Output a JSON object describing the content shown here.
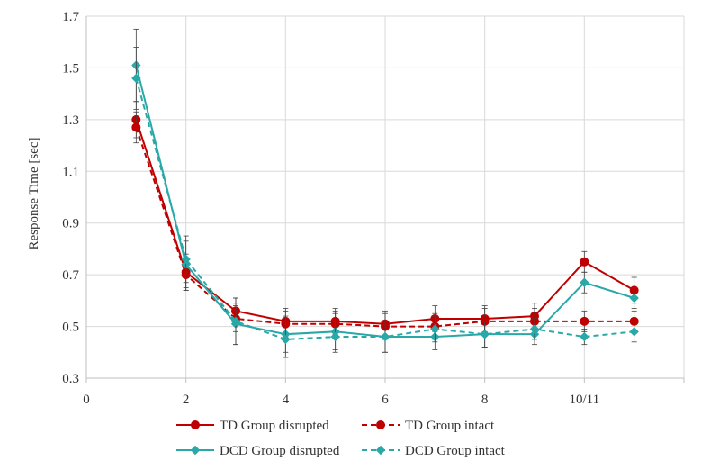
{
  "chart_data": {
    "type": "line",
    "title": "",
    "xlabel": "",
    "ylabel": "Response Time [sec]",
    "xlim": [
      0,
      12
    ],
    "ylim": [
      0.3,
      1.7
    ],
    "x_ticks": [
      0,
      2,
      4,
      6,
      8,
      10,
      12
    ],
    "x_tick_labels": [
      "0",
      "2",
      "4",
      "6",
      "8",
      "10/11",
      ""
    ],
    "y_ticks": [
      0.3,
      0.5,
      0.7,
      0.9,
      1.1,
      1.3,
      1.5,
      1.7
    ],
    "y_tick_labels": [
      "0.3",
      "0.5",
      "0.7",
      "0.9",
      "1.1",
      "1.3",
      "1.5",
      "1.7"
    ],
    "grid": true,
    "legend_position": "bottom",
    "x": [
      1,
      2,
      3,
      4,
      5,
      6,
      7,
      8,
      9,
      10,
      11
    ],
    "series": [
      {
        "name": "TD Group disrupted",
        "color": "#c00000",
        "dashed": false,
        "marker": "circle",
        "values": [
          1.3,
          0.71,
          0.56,
          0.52,
          0.52,
          0.51,
          0.53,
          0.53,
          0.54,
          0.75,
          0.64
        ],
        "errors": [
          0.07,
          0.07,
          0.05,
          0.05,
          0.05,
          0.05,
          0.05,
          0.05,
          0.05,
          0.04,
          0.05
        ]
      },
      {
        "name": "TD Group intact",
        "color": "#c00000",
        "dashed": true,
        "marker": "circle",
        "values": [
          1.27,
          0.7,
          0.53,
          0.51,
          0.51,
          0.5,
          0.5,
          0.52,
          0.52,
          0.52,
          0.52
        ],
        "errors": [
          0.06,
          0.06,
          0.05,
          0.05,
          0.05,
          0.05,
          0.05,
          0.05,
          0.05,
          0.04,
          0.04
        ]
      },
      {
        "name": "DCD Group disrupted",
        "color": "#2aa8a8",
        "dashed": false,
        "marker": "diamond",
        "values": [
          1.51,
          0.74,
          0.51,
          0.47,
          0.48,
          0.46,
          0.46,
          0.47,
          0.47,
          0.67,
          0.61
        ],
        "errors": [
          0.14,
          0.09,
          0.08,
          0.07,
          0.07,
          0.06,
          0.05,
          0.05,
          0.04,
          0.04,
          0.04
        ]
      },
      {
        "name": "DCD Group intact",
        "color": "#2aa8a8",
        "dashed": true,
        "marker": "diamond",
        "values": [
          1.46,
          0.76,
          0.52,
          0.45,
          0.46,
          0.46,
          0.49,
          0.47,
          0.49,
          0.46,
          0.48
        ],
        "errors": [
          0.12,
          0.09,
          0.09,
          0.07,
          0.06,
          0.06,
          0.05,
          0.05,
          0.04,
          0.03,
          0.04
        ]
      }
    ]
  }
}
